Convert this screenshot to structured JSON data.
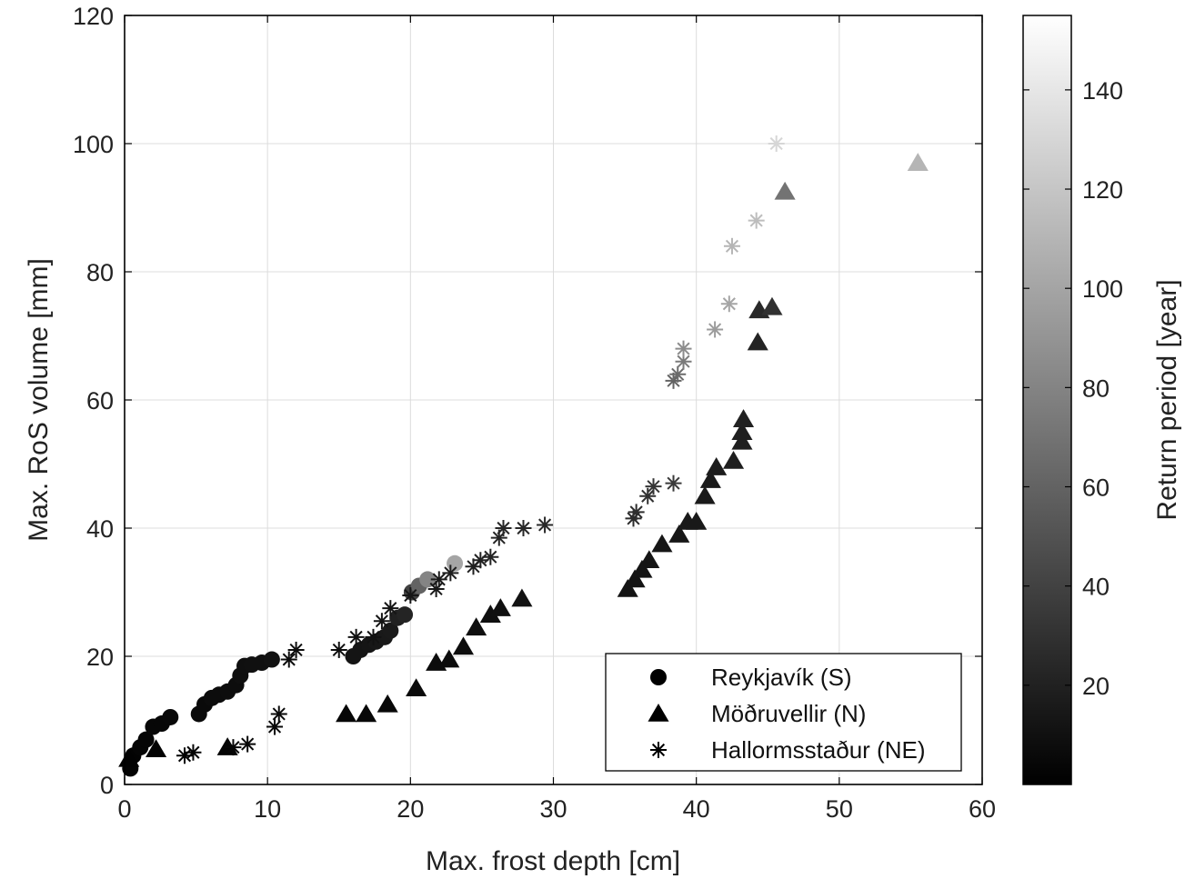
{
  "chart_data": {
    "type": "scatter",
    "title": "",
    "xlabel": "Max. frost depth [cm]",
    "ylabel": "Max. RoS volume [mm]",
    "xlim": [
      0,
      60
    ],
    "ylim": [
      0,
      120
    ],
    "xticks": [
      "0",
      "10",
      "20",
      "30",
      "40",
      "50",
      "60"
    ],
    "yticks": [
      "0",
      "20",
      "40",
      "60",
      "80",
      "100",
      "120"
    ],
    "grid": true,
    "legend_position": "bottom-right",
    "colorbar": {
      "label": "Return period [year]",
      "range": [
        0,
        155
      ],
      "ticks": [
        "20",
        "40",
        "60",
        "80",
        "100",
        "120",
        "140"
      ],
      "colormap": "gray",
      "low_color": "#000000",
      "high_color": "#ffffff"
    },
    "series": [
      {
        "name": "Reykjavík (S)",
        "marker": "circle",
        "points": [
          [
            0.4,
            2.5,
            2
          ],
          [
            0.6,
            4.5,
            2
          ],
          [
            1.1,
            5.8,
            3
          ],
          [
            1.5,
            7,
            3
          ],
          [
            2,
            9,
            4
          ],
          [
            2.6,
            9.5,
            4
          ],
          [
            3.2,
            10.5,
            5
          ],
          [
            5.2,
            11,
            6
          ],
          [
            5.6,
            12.5,
            6
          ],
          [
            6.1,
            13.5,
            7
          ],
          [
            6.6,
            14,
            7
          ],
          [
            7.2,
            14.5,
            8
          ],
          [
            7.8,
            15.5,
            8
          ],
          [
            8.1,
            17,
            9
          ],
          [
            8.4,
            18.5,
            9
          ],
          [
            8.9,
            18.7,
            10
          ],
          [
            9.6,
            19,
            10
          ],
          [
            10.3,
            19.5,
            11
          ],
          [
            16,
            20,
            12
          ],
          [
            16.5,
            21,
            12
          ],
          [
            17.1,
            21.8,
            13
          ],
          [
            17.6,
            22.3,
            14
          ],
          [
            18.2,
            23,
            15
          ],
          [
            18.6,
            24,
            16
          ],
          [
            19.1,
            26,
            20
          ],
          [
            19.6,
            26.5,
            22
          ],
          [
            20.1,
            30,
            40
          ],
          [
            20.6,
            31,
            60
          ],
          [
            21.2,
            32,
            80
          ],
          [
            23.1,
            34.5,
            100
          ]
        ]
      },
      {
        "name": "Möðruvellir (N)",
        "marker": "triangle",
        "points": [
          [
            0.3,
            4,
            1
          ],
          [
            2.2,
            5.5,
            2
          ],
          [
            7.2,
            5.8,
            3
          ],
          [
            15.5,
            11,
            4
          ],
          [
            16.9,
            11,
            5
          ],
          [
            18.4,
            12.5,
            5
          ],
          [
            20.4,
            15,
            6
          ],
          [
            21.8,
            19,
            7
          ],
          [
            22.7,
            19.5,
            7
          ],
          [
            23.7,
            21.5,
            8
          ],
          [
            24.6,
            24.5,
            9
          ],
          [
            25.6,
            26.5,
            9
          ],
          [
            26.3,
            27.5,
            10
          ],
          [
            27.8,
            29,
            11
          ],
          [
            35.2,
            30.5,
            12
          ],
          [
            35.7,
            32,
            12
          ],
          [
            36.2,
            33.5,
            13
          ],
          [
            36.7,
            35,
            13
          ],
          [
            37.6,
            37.5,
            14
          ],
          [
            38.8,
            39,
            14
          ],
          [
            39.4,
            41,
            15
          ],
          [
            40,
            41,
            15
          ],
          [
            40.6,
            45,
            16
          ],
          [
            41,
            47.5,
            16
          ],
          [
            41.4,
            49.5,
            17
          ],
          [
            42.6,
            50.5,
            18
          ],
          [
            43.2,
            53.5,
            19
          ],
          [
            43.2,
            55,
            19
          ],
          [
            43.3,
            57,
            20
          ],
          [
            44.3,
            69,
            22
          ],
          [
            44.4,
            74,
            25
          ],
          [
            45.3,
            74.5,
            30
          ],
          [
            46.2,
            92.5,
            70
          ],
          [
            55.5,
            97,
            110
          ]
        ]
      },
      {
        "name": "Hallormsstaður (NE)",
        "marker": "asterisk",
        "points": [
          [
            4.2,
            4.5,
            2
          ],
          [
            4.8,
            5,
            3
          ],
          [
            7.6,
            5.8,
            4
          ],
          [
            8.6,
            6.3,
            4
          ],
          [
            10.5,
            9,
            5
          ],
          [
            10.8,
            11,
            6
          ],
          [
            11.5,
            19.5,
            7
          ],
          [
            12,
            21,
            8
          ],
          [
            15,
            21,
            9
          ],
          [
            16.2,
            23,
            10
          ],
          [
            17.4,
            23,
            11
          ],
          [
            18,
            25.5,
            12
          ],
          [
            18.6,
            27.5,
            13
          ],
          [
            20,
            29.5,
            14
          ],
          [
            21.8,
            30.5,
            15
          ],
          [
            22,
            32,
            16
          ],
          [
            22.8,
            33,
            18
          ],
          [
            24.4,
            34,
            19
          ],
          [
            24.9,
            35,
            20
          ],
          [
            25.6,
            35.5,
            21
          ],
          [
            26.2,
            38.5,
            22
          ],
          [
            26.5,
            40,
            23
          ],
          [
            27.9,
            40,
            24
          ],
          [
            29.4,
            40.5,
            25
          ],
          [
            35.6,
            41.5,
            26
          ],
          [
            35.8,
            42.5,
            28
          ],
          [
            36.6,
            45,
            30
          ],
          [
            37,
            46.5,
            32
          ],
          [
            38.4,
            47,
            35
          ],
          [
            38.4,
            63,
            60
          ],
          [
            38.7,
            64,
            65
          ],
          [
            39.1,
            66,
            75
          ],
          [
            39.1,
            68,
            85
          ],
          [
            41.3,
            71,
            95
          ],
          [
            42.3,
            75,
            100
          ],
          [
            42.5,
            84,
            110
          ],
          [
            44.2,
            88,
            115
          ],
          [
            45.6,
            100,
            130
          ]
        ]
      }
    ]
  }
}
